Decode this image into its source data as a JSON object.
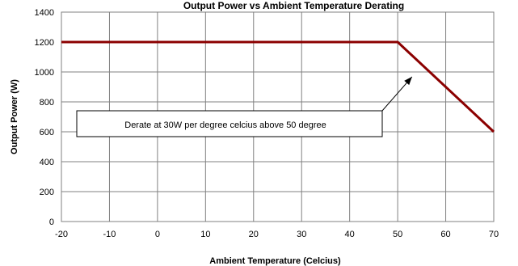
{
  "chart_data": {
    "type": "line",
    "title": "Output Power vs Ambient Temperature Derating",
    "xlabel": "Ambient Temperature (Celcius)",
    "ylabel": "Output Power (W)",
    "xlim": [
      -20,
      70
    ],
    "ylim": [
      0,
      1400
    ],
    "xticks": [
      -20,
      -10,
      0,
      10,
      20,
      30,
      40,
      50,
      60,
      70
    ],
    "yticks": [
      0,
      200,
      400,
      600,
      800,
      1000,
      1200,
      1400
    ],
    "grid": true,
    "series": [
      {
        "name": "",
        "color": "#8b0000",
        "x": [
          -20,
          50,
          70
        ],
        "y": [
          1200,
          1200,
          600
        ]
      }
    ],
    "annotation": {
      "text": "Derate at 30W per degree celcius above 50 degree",
      "arrow_target": {
        "x": 55,
        "y": 1000
      }
    }
  }
}
